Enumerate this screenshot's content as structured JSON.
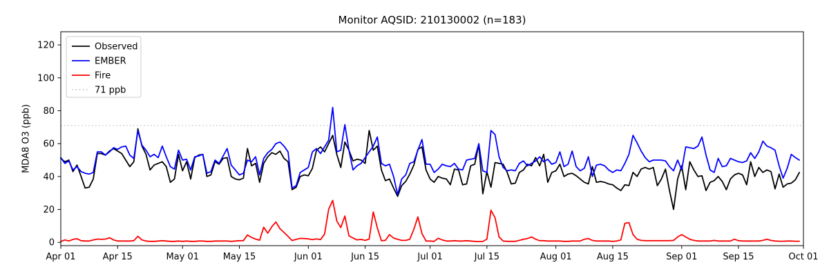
{
  "title": "Monitor AQSID: 210130002 (n=183)",
  "axes": {
    "ylabel": "MDA8 O3 (ppb)",
    "yticks": [
      0,
      20,
      40,
      60,
      80,
      100,
      120
    ],
    "x_tick_labels": [
      "Apr 01",
      "Apr 15",
      "May 01",
      "May 15",
      "Jun 01",
      "Jun 15",
      "Jul 01",
      "Jul 15",
      "Aug 01",
      "Aug 15",
      "Sep 01",
      "Sep 15",
      "Oct 01"
    ]
  },
  "legend": {
    "position": "upper left",
    "items": [
      {
        "label": "Observed",
        "color": "#000000",
        "dash": ""
      },
      {
        "label": "EMBER",
        "color": "#0000ff",
        "dash": ""
      },
      {
        "label": "Fire",
        "color": "#ff0000",
        "dash": ""
      },
      {
        "label": "71 ppb",
        "color": "#d3d3d3",
        "dash": "2 3.2"
      }
    ]
  },
  "chart_data": {
    "type": "line",
    "title": "Monitor AQSID: 210130002 (n=183)",
    "xlabel": "",
    "ylabel": "MDA8 O3 (ppb)",
    "grid": false,
    "ylim": [
      -2,
      128
    ],
    "yticks": [
      0,
      20,
      40,
      60,
      80,
      100,
      120
    ],
    "x_start": "Apr 01",
    "x_end": "Oct 01",
    "n_points": 183,
    "total_days": 183,
    "x_ticks": [
      {
        "label": "Apr 01",
        "day": 0
      },
      {
        "label": "Apr 15",
        "day": 14
      },
      {
        "label": "May 01",
        "day": 30
      },
      {
        "label": "May 15",
        "day": 44
      },
      {
        "label": "Jun 01",
        "day": 61
      },
      {
        "label": "Jun 15",
        "day": 75
      },
      {
        "label": "Jul 01",
        "day": 91
      },
      {
        "label": "Jul 15",
        "day": 105
      },
      {
        "label": "Aug 01",
        "day": 122
      },
      {
        "label": "Aug 15",
        "day": 136
      },
      {
        "label": "Sep 01",
        "day": 153
      },
      {
        "label": "Sep 15",
        "day": 167
      },
      {
        "label": "Oct 01",
        "day": 183
      }
    ],
    "threshold": {
      "value": 71,
      "label": "71 ppb",
      "color": "#d3d3d3",
      "style": "dotted"
    },
    "series": [
      {
        "name": "Observed",
        "color": "#000000",
        "values": [
          51,
          49,
          50,
          43,
          47,
          40,
          33,
          33.5,
          38.5,
          54,
          54,
          53,
          55.5,
          57,
          55.5,
          54,
          50,
          46,
          49,
          69,
          58.5,
          53.5,
          44,
          47,
          48,
          49,
          46,
          36.5,
          38.5,
          53.5,
          43.5,
          49,
          38.5,
          51.5,
          53,
          53.5,
          40,
          41,
          49,
          47.5,
          51,
          51.5,
          40,
          38.5,
          38,
          39,
          57,
          46.5,
          48,
          36.5,
          48,
          52,
          54.5,
          53.5,
          55.5,
          51,
          49,
          32,
          33.5,
          40,
          41,
          40.5,
          45,
          56,
          58,
          55,
          60,
          65,
          53.5,
          45.5,
          61,
          56,
          49.5,
          50.5,
          50,
          48,
          68,
          56,
          58.5,
          44,
          37.5,
          38.5,
          33,
          28,
          34.5,
          37,
          41.5,
          47,
          56.5,
          58,
          44,
          38.5,
          36.5,
          40,
          39,
          38.5,
          35,
          44.5,
          44,
          35,
          35.5,
          46.5,
          47.5,
          59.5,
          29.5,
          43,
          33.5,
          48.5,
          48,
          47.5,
          42.5,
          35.5,
          36,
          42.5,
          44,
          47.5,
          46.5,
          51.5,
          46.5,
          53.5,
          36.5,
          42.5,
          43.5,
          47.5,
          40,
          41.5,
          42,
          40.5,
          38.5,
          36.5,
          35.5,
          46,
          36.5,
          37,
          36.5,
          35.5,
          35,
          33,
          31.5,
          35,
          34.5,
          42.5,
          40,
          44.5,
          45.5,
          44.5,
          45.5,
          34.5,
          38.5,
          44.5,
          31.5,
          20,
          38.5,
          46.5,
          32,
          49,
          44,
          40,
          40.5,
          31.5,
          36.5,
          37.5,
          40,
          37,
          32,
          38.5,
          41,
          42,
          41,
          35,
          49,
          40,
          45.5,
          42.5,
          44,
          43,
          32.5,
          41.5,
          33.5,
          35.5,
          36,
          38,
          42.5
        ]
      },
      {
        "name": "EMBER",
        "color": "#0000ff",
        "values": [
          51.5,
          48,
          49.5,
          44,
          46,
          43,
          42,
          41.5,
          42.5,
          55,
          55,
          53,
          55,
          57.5,
          56.5,
          58,
          58.5,
          53,
          51,
          68,
          59,
          56,
          52,
          53.5,
          51.5,
          58.5,
          52,
          46,
          44.5,
          56,
          50,
          50.5,
          44,
          52,
          52.5,
          53.5,
          42,
          43,
          50,
          48,
          52.5,
          57,
          47,
          44,
          41,
          42,
          50,
          49,
          52,
          41,
          51,
          54.5,
          56.5,
          60,
          61,
          58.5,
          55,
          33,
          34.5,
          42.5,
          44,
          45.5,
          55,
          57,
          54,
          58,
          62,
          82,
          55,
          56,
          71.5,
          56,
          44,
          46.5,
          48,
          51.5,
          55,
          58.5,
          64,
          48,
          46.5,
          47.5,
          40,
          29,
          38.5,
          41,
          48,
          49,
          56,
          62.5,
          47.5,
          47.5,
          42.5,
          44.5,
          47.5,
          46.5,
          46,
          48,
          44.5,
          44,
          50,
          50.5,
          51,
          60,
          43.5,
          42.5,
          68,
          65.5,
          52,
          45.5,
          43.5,
          44,
          43.5,
          48,
          49.5,
          46.5,
          48,
          49.5,
          52,
          49,
          50.5,
          47.5,
          48.5,
          55,
          46,
          47.5,
          55.5,
          46,
          43.5,
          45,
          52,
          40,
          47,
          47.5,
          46.5,
          44,
          42.5,
          44,
          43.5,
          48,
          53.5,
          65,
          60.5,
          55.5,
          51.5,
          49,
          50,
          50,
          50,
          49.5,
          46,
          43.5,
          50,
          44,
          58,
          57.5,
          57,
          58.5,
          64,
          53,
          44,
          42.5,
          51,
          46,
          46.5,
          51,
          50,
          49,
          48.5,
          49.5,
          54.5,
          51,
          55,
          61.5,
          58.5,
          57.5,
          56,
          46.5,
          39,
          45,
          53.5,
          51.5,
          50
        ]
      },
      {
        "name": "Fire",
        "color": "#ff0000",
        "values": [
          0.5,
          1.5,
          0.8,
          1.8,
          2.2,
          1,
          0.8,
          0.8,
          1.5,
          2,
          1.8,
          2,
          2.8,
          1.5,
          0.8,
          0.8,
          0.8,
          0.8,
          1,
          3.7,
          1.5,
          0.8,
          0.6,
          0.6,
          0.8,
          1,
          0.8,
          0.6,
          0.6,
          0.8,
          0.6,
          0.8,
          0.6,
          0.6,
          0.8,
          0.8,
          0.6,
          0.6,
          0.8,
          0.8,
          0.8,
          0.8,
          0.6,
          0.8,
          1,
          1,
          4.5,
          3,
          2,
          1.3,
          9.2,
          5.6,
          9.5,
          12.4,
          8.3,
          6,
          3.6,
          1.1,
          1.8,
          2.4,
          2.3,
          2.1,
          1.7,
          2.1,
          1.7,
          5,
          20,
          25.5,
          13,
          9,
          16,
          4,
          2.6,
          1.5,
          1.8,
          1.2,
          2,
          18.5,
          8.8,
          1,
          1.2,
          4.7,
          2.6,
          1.9,
          1.2,
          1.2,
          1.9,
          8,
          15.5,
          5.4,
          0.8,
          0.8,
          0.6,
          2.5,
          1.5,
          0.8,
          0.8,
          1,
          0.8,
          0.8,
          1,
          0.8,
          0.6,
          0.5,
          0.5,
          2,
          19.5,
          15,
          3.3,
          0.8,
          0.6,
          0.6,
          0.6,
          1.2,
          1.9,
          2.3,
          3.3,
          1.9,
          1,
          1,
          0.8,
          0.8,
          0.8,
          0.8,
          0.6,
          0.6,
          0.8,
          0.8,
          0.8,
          1.9,
          2.3,
          1.2,
          0.8,
          0.8,
          0.8,
          0.8,
          0.6,
          0.8,
          1.5,
          11.6,
          12,
          4.7,
          1.9,
          1.2,
          1,
          1,
          1,
          1,
          1,
          1,
          1,
          1.2,
          3.3,
          4.7,
          3.3,
          1.9,
          1.2,
          0.8,
          0.8,
          0.8,
          0.8,
          1.2,
          0.8,
          0.8,
          0.8,
          0.8,
          1.9,
          1,
          0.8,
          0.8,
          0.8,
          0.8,
          0.8,
          1.2,
          1.9,
          1.2,
          0.8,
          0.7,
          0.7,
          0.8,
          0.8,
          0.7,
          0.7
        ]
      }
    ]
  }
}
